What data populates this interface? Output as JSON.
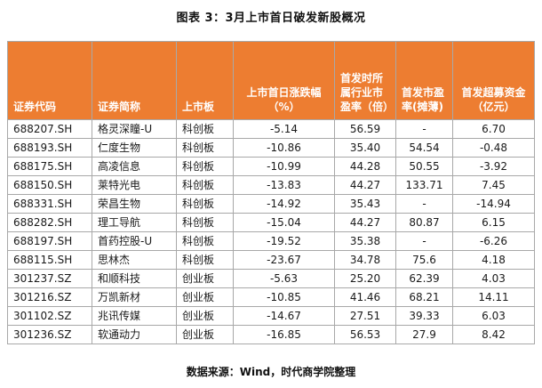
{
  "title": "图表 3：3月上市首日破发新股概况",
  "source": "数据来源：Wind，时代商学院整理",
  "table": {
    "headers": [
      "证券代码",
      "证券简称",
      "上市板",
      "上市首日涨跌幅（%）",
      "首发时所属行业市盈率（倍）",
      "首发市盈率(摊薄)",
      "首发超募资金（亿元）"
    ],
    "rows": [
      [
        "688207.SH",
        "格灵深瞳-U",
        "科创板",
        "-5.14",
        "56.59",
        "-",
        "6.70"
      ],
      [
        "688193.SH",
        "仁度生物",
        "科创板",
        "-10.86",
        "35.40",
        "54.54",
        "-0.48"
      ],
      [
        "688175.SH",
        "高凌信息",
        "科创板",
        "-10.99",
        "44.28",
        "50.55",
        "-3.92"
      ],
      [
        "688150.SH",
        "莱特光电",
        "科创板",
        "-13.83",
        "44.27",
        "133.71",
        "7.45"
      ],
      [
        "688331.SH",
        "荣昌生物",
        "科创板",
        "-14.92",
        "35.43",
        "-",
        "-14.94"
      ],
      [
        "688282.SH",
        "理工导航",
        "科创板",
        "-15.04",
        "44.27",
        "80.87",
        "6.15"
      ],
      [
        "688197.SH",
        "首药控股-U",
        "科创板",
        "-19.52",
        "35.38",
        "-",
        "-6.26"
      ],
      [
        "688115.SH",
        "思林杰",
        "科创板",
        "-23.67",
        "34.78",
        "75.6",
        "4.18"
      ],
      [
        "301237.SZ",
        "和顺科技",
        "创业板",
        "-5.63",
        "25.20",
        "62.39",
        "4.03"
      ],
      [
        "301216.SZ",
        "万凯新材",
        "创业板",
        "-10.85",
        "41.46",
        "68.21",
        "14.11"
      ],
      [
        "301102.SZ",
        "兆讯传媒",
        "创业板",
        "-14.67",
        "27.51",
        "39.33",
        "6.03"
      ],
      [
        "301236.SZ",
        "软通动力",
        "创业板",
        "-16.85",
        "56.53",
        "27.9",
        "8.42"
      ]
    ]
  }
}
